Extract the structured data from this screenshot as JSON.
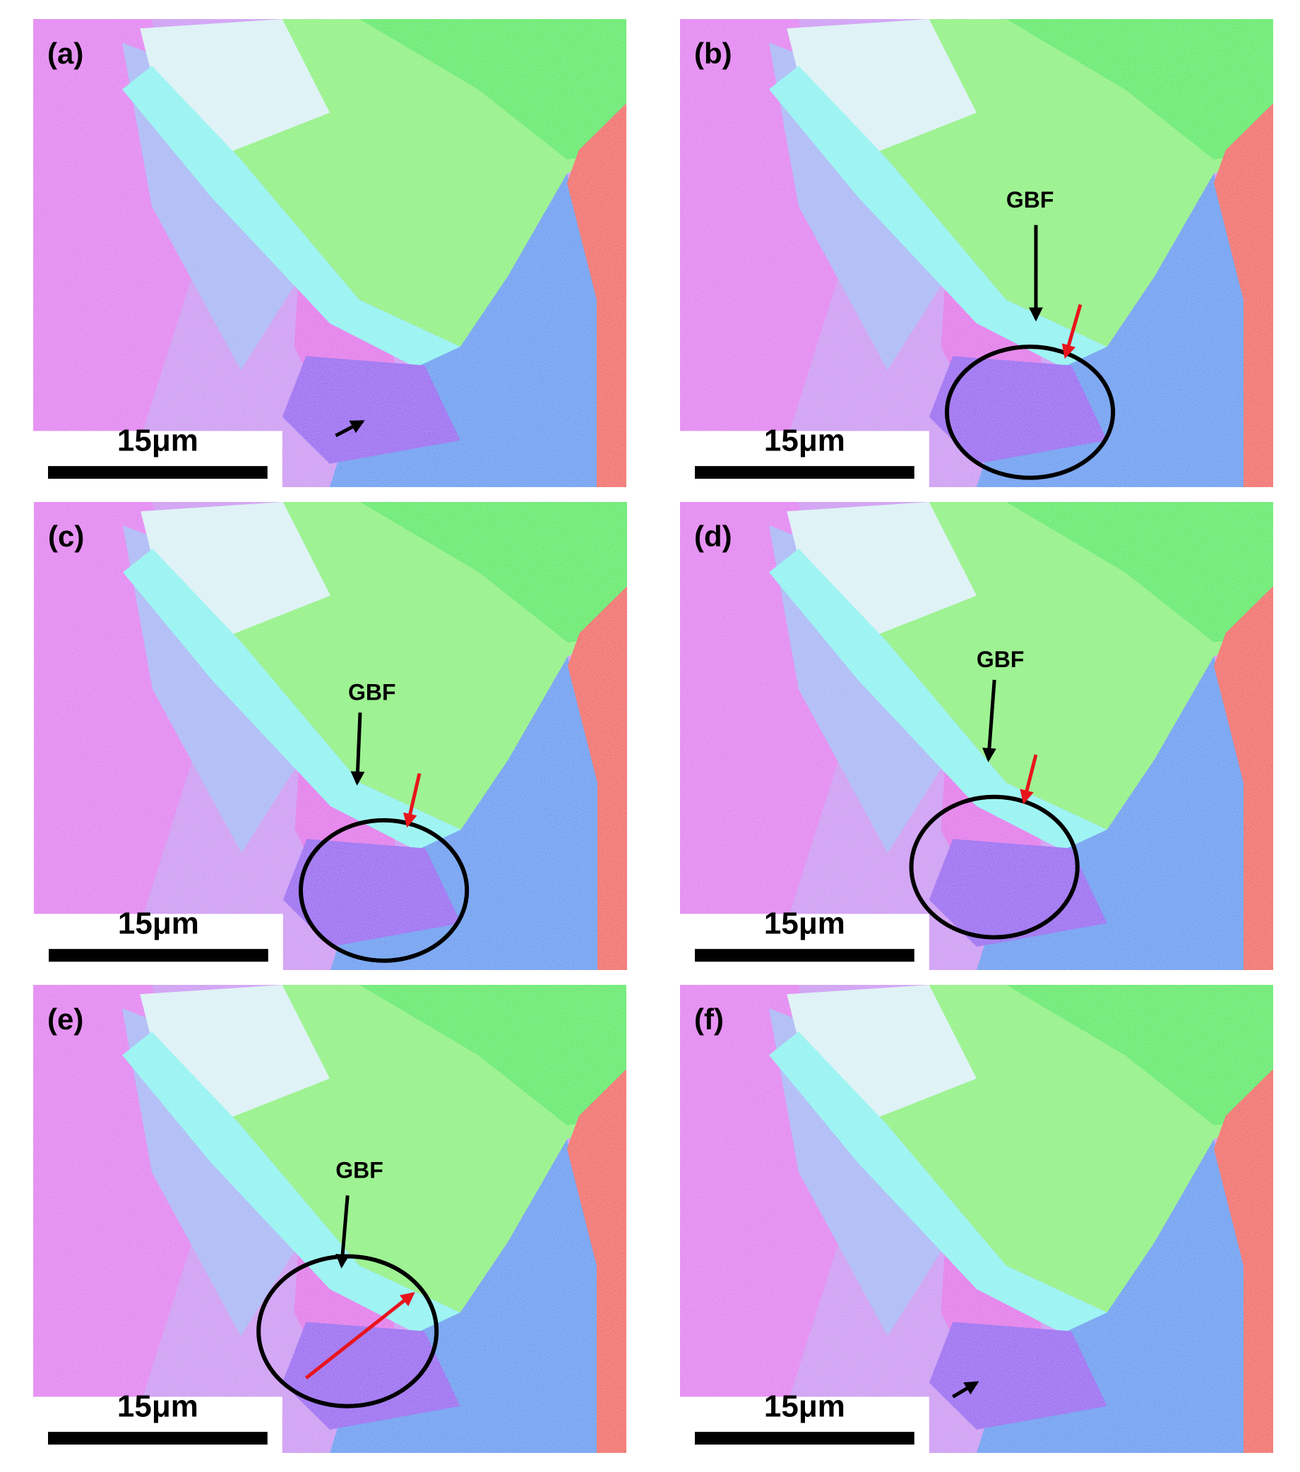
{
  "panels": [
    {
      "label": "(a)",
      "scale_bar": "15μm"
    },
    {
      "label": "(b)",
      "scale_bar": "15μm",
      "annotation": "GBF"
    },
    {
      "label": "(c)",
      "scale_bar": "15μm",
      "annotation": "GBF"
    },
    {
      "label": "(d)",
      "scale_bar": "15μm",
      "annotation": "GBF"
    },
    {
      "label": "(e)",
      "scale_bar": "15μm",
      "annotation": "GBF"
    },
    {
      "label": "(f)",
      "scale_bar": "15μm"
    }
  ]
}
